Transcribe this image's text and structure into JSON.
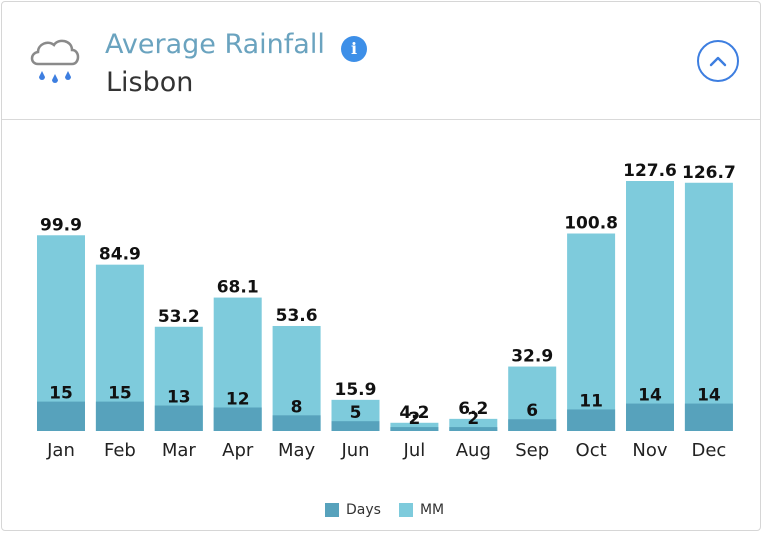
{
  "header": {
    "title": "Average Rainfall",
    "subtitle": "Lisbon",
    "info_glyph": "i",
    "icons": [
      "rain-cloud-icon",
      "info-icon",
      "chevron-up-icon"
    ]
  },
  "colors": {
    "mm": "#7ecbdc",
    "days": "#57a2bc"
  },
  "chart_data": {
    "type": "bar",
    "title": "Average Rainfall",
    "subtitle": "Lisbon",
    "categories": [
      "Jan",
      "Feb",
      "Mar",
      "Apr",
      "May",
      "Jun",
      "Jul",
      "Aug",
      "Sep",
      "Oct",
      "Nov",
      "Dec"
    ],
    "series": [
      {
        "name": "MM",
        "values": [
          99.9,
          84.9,
          53.2,
          68.1,
          53.6,
          15.9,
          4.2,
          6.2,
          32.9,
          100.8,
          127.6,
          126.7
        ]
      },
      {
        "name": "Days",
        "values": [
          15,
          15,
          13,
          12,
          8,
          5,
          2,
          2,
          6,
          11,
          14,
          14
        ]
      }
    ],
    "ylim": [
      0,
      127.6
    ],
    "xlabel": "",
    "ylabel": "",
    "grid": false,
    "legend": "bottom-center"
  }
}
